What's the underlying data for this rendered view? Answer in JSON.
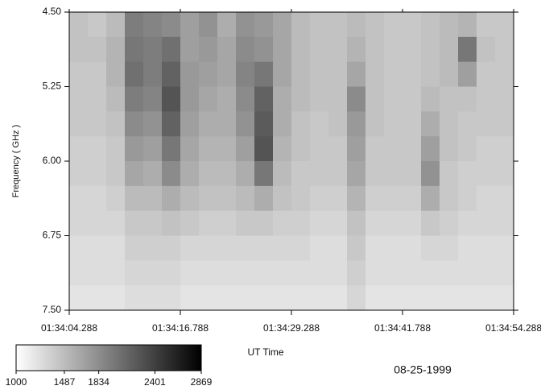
{
  "chart_data": {
    "type": "heatmap",
    "ylabel": "Frequency ( GHz )",
    "xlabel": "UT Time",
    "date": "08-25-1999",
    "ylim": [
      4.5,
      7.5
    ],
    "yticks": [
      {
        "value": 4.5,
        "label": "4.50"
      },
      {
        "value": 5.25,
        "label": "5.25"
      },
      {
        "value": 6.0,
        "label": "6.00"
      },
      {
        "value": 6.75,
        "label": "6.75"
      },
      {
        "value": 7.5,
        "label": "7.50"
      }
    ],
    "xticks": [
      "01:34:04.288",
      "01:34:16.788",
      "01:34:29.288",
      "01:34:41.788",
      "01:34:54.288"
    ],
    "clim": [
      1000,
      2869
    ],
    "cticks": [
      1000,
      1487,
      1834,
      2401,
      2869
    ],
    "colormap": [
      "#ffffff",
      "#000000"
    ],
    "z": [
      [
        1450,
        1400,
        1500,
        1950,
        1900,
        1850,
        1700,
        1800,
        1600,
        1800,
        1750,
        1650,
        1500,
        1450,
        1450,
        1500,
        1450,
        1400,
        1400,
        1450,
        1500,
        1550,
        1400,
        1400
      ],
      [
        1450,
        1450,
        1550,
        2000,
        1950,
        2050,
        1700,
        1750,
        1650,
        1850,
        1800,
        1650,
        1500,
        1450,
        1450,
        1550,
        1450,
        1400,
        1400,
        1450,
        1500,
        2000,
        1450,
        1400
      ],
      [
        1400,
        1400,
        1550,
        2050,
        1950,
        2150,
        1750,
        1700,
        1650,
        1900,
        2000,
        1650,
        1500,
        1450,
        1450,
        1650,
        1450,
        1400,
        1400,
        1450,
        1500,
        1700,
        1400,
        1400
      ],
      [
        1400,
        1400,
        1500,
        1950,
        1900,
        2250,
        1750,
        1650,
        1600,
        1850,
        2150,
        1600,
        1500,
        1450,
        1450,
        1850,
        1450,
        1400,
        1400,
        1500,
        1450,
        1450,
        1400,
        1400
      ],
      [
        1400,
        1400,
        1450,
        1850,
        1800,
        2150,
        1700,
        1600,
        1600,
        1800,
        2200,
        1600,
        1450,
        1400,
        1450,
        1750,
        1450,
        1400,
        1400,
        1600,
        1450,
        1400,
        1400,
        1400
      ],
      [
        1350,
        1350,
        1400,
        1750,
        1700,
        2000,
        1650,
        1550,
        1550,
        1700,
        2250,
        1550,
        1450,
        1400,
        1400,
        1700,
        1400,
        1400,
        1400,
        1700,
        1450,
        1400,
        1350,
        1350
      ],
      [
        1350,
        1350,
        1400,
        1650,
        1600,
        1850,
        1600,
        1500,
        1500,
        1600,
        2000,
        1500,
        1400,
        1400,
        1400,
        1650,
        1400,
        1400,
        1400,
        1800,
        1400,
        1350,
        1350,
        1350
      ],
      [
        1300,
        1300,
        1350,
        1500,
        1500,
        1600,
        1500,
        1450,
        1450,
        1500,
        1600,
        1450,
        1400,
        1350,
        1350,
        1550,
        1350,
        1350,
        1350,
        1600,
        1400,
        1350,
        1300,
        1300
      ],
      [
        1300,
        1300,
        1300,
        1400,
        1400,
        1450,
        1400,
        1350,
        1350,
        1400,
        1400,
        1350,
        1350,
        1300,
        1300,
        1450,
        1300,
        1300,
        1300,
        1400,
        1350,
        1300,
        1300,
        1300
      ],
      [
        1250,
        1250,
        1250,
        1350,
        1350,
        1350,
        1300,
        1300,
        1300,
        1300,
        1300,
        1300,
        1300,
        1250,
        1250,
        1400,
        1250,
        1250,
        1250,
        1300,
        1300,
        1250,
        1250,
        1250
      ],
      [
        1250,
        1250,
        1250,
        1300,
        1300,
        1300,
        1250,
        1250,
        1250,
        1250,
        1250,
        1250,
        1250,
        1250,
        1250,
        1350,
        1250,
        1250,
        1250,
        1250,
        1250,
        1250,
        1250,
        1250
      ],
      [
        1200,
        1200,
        1200,
        1250,
        1250,
        1250,
        1200,
        1200,
        1200,
        1200,
        1200,
        1200,
        1200,
        1200,
        1200,
        1300,
        1200,
        1200,
        1200,
        1200,
        1200,
        1200,
        1200,
        1200
      ]
    ]
  }
}
